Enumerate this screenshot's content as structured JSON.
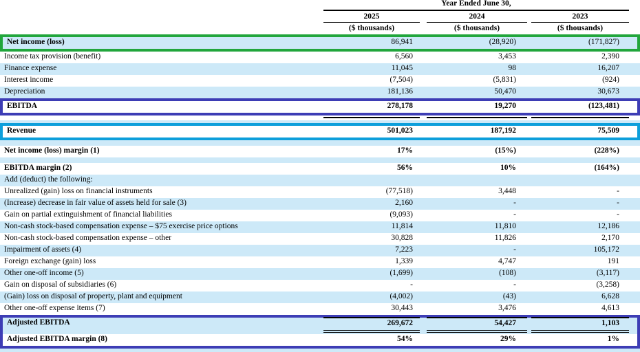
{
  "table": {
    "period_header": "Year Ended June 30,",
    "columns": [
      {
        "year": "2025",
        "unit": "($ thousands)"
      },
      {
        "year": "2024",
        "unit": "($ thousands)"
      },
      {
        "year": "2023",
        "unit": "($ thousands)"
      }
    ],
    "rows": [
      {
        "label": "Net income (loss)",
        "values": [
          "86,941",
          "(28,920)",
          "(171,827)"
        ]
      },
      {
        "label": "Income tax provision (benefit)",
        "values": [
          "6,560",
          "3,453",
          "2,390"
        ]
      },
      {
        "label": "Finance expense",
        "values": [
          "11,045",
          "98",
          "16,207"
        ]
      },
      {
        "label": "Interest income",
        "values": [
          "(7,504)",
          "(5,831)",
          "(924)"
        ]
      },
      {
        "label": "Depreciation",
        "values": [
          "181,136",
          "50,470",
          "30,673"
        ]
      },
      {
        "label": "EBITDA",
        "values": [
          "278,178",
          "19,270",
          "(123,481)"
        ]
      },
      {
        "label": "Revenue",
        "values": [
          "501,023",
          "187,192",
          "75,509"
        ]
      },
      {
        "label": "Net income (loss) margin (1)",
        "values": [
          "17%",
          "(15%)",
          "(228%)"
        ]
      },
      {
        "label": "EBITDA margin (2)",
        "values": [
          "56%",
          "10%",
          "(164%)"
        ]
      },
      {
        "label": "Add (deduct) the following:",
        "values": [
          "",
          "",
          ""
        ]
      },
      {
        "label": "Unrealized (gain) loss on financial instruments",
        "values": [
          "(77,518)",
          "3,448",
          "-"
        ]
      },
      {
        "label": "(Increase) decrease in fair value of assets held for sale (3)",
        "values": [
          "2,160",
          "-",
          "-"
        ]
      },
      {
        "label": "Gain on partial extinguishment of financial liabilities",
        "values": [
          "(9,093)",
          "-",
          "-"
        ]
      },
      {
        "label": "Non-cash stock-based compensation expense – $75 exercise price options",
        "values": [
          "11,814",
          "11,810",
          "12,186"
        ]
      },
      {
        "label": "Non-cash stock-based compensation expense – other",
        "values": [
          "30,828",
          "11,826",
          "2,170"
        ]
      },
      {
        "label": "Impairment of assets (4)",
        "values": [
          "7,223",
          "-",
          "105,172"
        ]
      },
      {
        "label": "Foreign exchange (gain) loss",
        "values": [
          "1,339",
          "4,747",
          "191"
        ]
      },
      {
        "label": "Other one-off income (5)",
        "values": [
          "(1,699)",
          "(108)",
          "(3,117)"
        ]
      },
      {
        "label": "Gain on disposal of subsidiaries (6)",
        "values": [
          "-",
          "-",
          "(3,258)"
        ]
      },
      {
        "label": "(Gain) loss on disposal of property, plant and equipment",
        "values": [
          "(4,002)",
          "(43)",
          "6,628"
        ]
      },
      {
        "label": "Other one-off expense items (7)",
        "values": [
          "30,443",
          "3,476",
          "4,613"
        ]
      },
      {
        "label": "Adjusted EBITDA",
        "values": [
          "269,672",
          "54,427",
          "1,103"
        ]
      },
      {
        "label": "Adjusted EBITDA margin (8)",
        "values": [
          "54%",
          "29%",
          "1%"
        ]
      }
    ]
  },
  "colors": {
    "row_stripe": "#cde9f8",
    "highlight_green": "#21a63c",
    "highlight_navy": "#3d3db5",
    "highlight_cyan": "#0d9fdb",
    "text": "#000000"
  }
}
